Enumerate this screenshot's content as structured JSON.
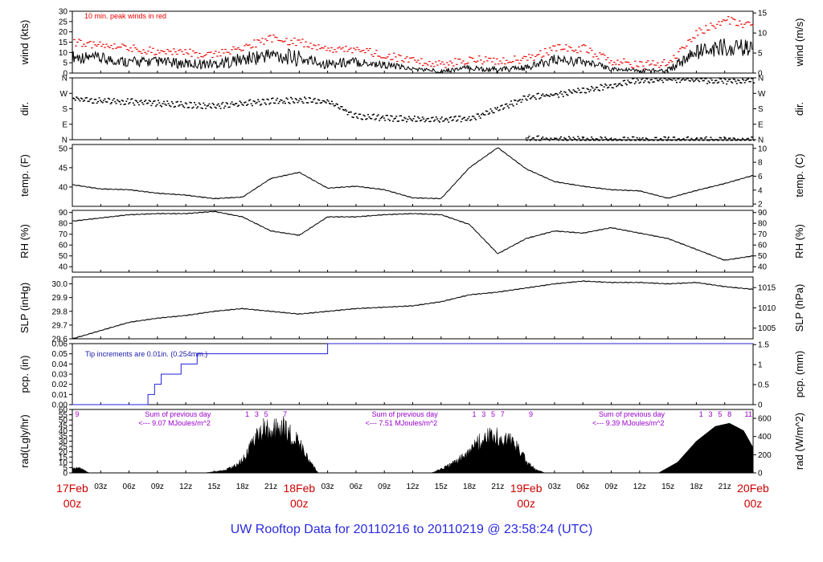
{
  "chart_data": {
    "type": "line",
    "title": "UW Rooftop Data for 20110216  to  20110219 @ 23:58:24  (UTC)",
    "x_range": [
      "2011-02-17T00:00Z",
      "2011-02-20T00:00Z"
    ],
    "x_ticks_minor": [
      "03z",
      "06z",
      "09z",
      "12z",
      "15z",
      "18z",
      "21z",
      "03z",
      "06z",
      "09z",
      "12z",
      "15z",
      "18z",
      "21z",
      "03z",
      "06z",
      "09z",
      "12z",
      "15z",
      "18z",
      "21z"
    ],
    "x_ticks_major": [
      {
        "date": "17Feb",
        "hour": "00z"
      },
      {
        "date": "18Feb",
        "hour": "00z"
      },
      {
        "date": "19Feb",
        "hour": "00z"
      },
      {
        "date": "20Feb",
        "hour": "00z"
      }
    ],
    "colors": {
      "axis": "#000000",
      "date_labels": "#cc0000",
      "peak": "#ee0000",
      "precip": "#2222dd",
      "precip_note": "#1a1aaa",
      "rad_text": "#9900cc",
      "title": "#2a2adf"
    },
    "panels": [
      {
        "id": "wind",
        "ylabel_left": "wind (kts)",
        "ylabel_right": "wind (m/s)",
        "ylim": [
          0,
          30
        ],
        "yticks_left": [
          "0",
          "5",
          "10",
          "15",
          "20",
          "25",
          "30"
        ],
        "yticks_right": [
          "0",
          "5",
          "10",
          "15"
        ],
        "note": "10 min. peak winds in red",
        "series": [
          {
            "kind": "band",
            "hours": [
              0,
              3,
              6,
              9,
              12,
              15,
              18,
              21,
              24,
              27,
              30,
              33,
              36,
              39,
              42,
              45,
              48,
              51,
              54,
              57,
              60,
              63,
              66,
              69,
              72
            ],
            "low": [
              5,
              4,
              3,
              3,
              2,
              2,
              3,
              5,
              3,
              2,
              3,
              2,
              1,
              0,
              1,
              0,
              1,
              4,
              3,
              1,
              0,
              0,
              6,
              8,
              8
            ],
            "high": [
              11,
              10,
              8,
              8,
              7,
              7,
              10,
              13,
              11,
              7,
              8,
              6,
              3,
              2,
              4,
              3,
              4,
              9,
              8,
              3,
              2,
              3,
              14,
              17,
              16
            ]
          },
          {
            "kind": "peak",
            "hours": [
              0,
              3,
              6,
              9,
              12,
              15,
              18,
              21,
              24,
              27,
              30,
              33,
              36,
              39,
              42,
              45,
              48,
              51,
              54,
              57,
              60,
              63,
              66,
              69,
              72
            ],
            "values": [
              15,
              14,
              12,
              11,
              10,
              9,
              13,
              17,
              15,
              11,
              12,
              9,
              6,
              4,
              7,
              6,
              7,
              12,
              12,
              6,
              4,
              5,
              20,
              26,
              23
            ]
          }
        ]
      },
      {
        "id": "dir",
        "ylabel_left": "dir.",
        "ylabel_right": "dir.",
        "ylim": [
          0,
          360
        ],
        "yticks_left": [
          "N",
          "E",
          "S",
          "W",
          "N"
        ],
        "yticks_right": [
          "N",
          "E",
          "S",
          "W",
          "N"
        ],
        "series": [
          {
            "kind": "scatter",
            "hours": [
              0,
              3,
              6,
              9,
              12,
              15,
              18,
              21,
              24,
              27,
              30,
              33,
              36,
              39,
              42,
              45,
              48,
              51,
              54,
              57,
              60,
              63,
              66,
              69,
              72
            ],
            "values": [
              245,
              230,
              225,
              215,
              205,
              200,
              215,
              228,
              235,
              225,
              140,
              130,
              125,
              120,
              125,
              180,
              250,
              265,
              290,
              320,
              350,
              355,
              350,
              345,
              350
            ]
          },
          {
            "kind": "scatter",
            "hours": [
              48,
              51,
              54,
              57,
              60,
              63,
              66,
              69,
              72
            ],
            "values": [
              10,
              5,
              4,
              3,
              2,
              2,
              2,
              3,
              2
            ]
          }
        ]
      },
      {
        "id": "temp",
        "ylabel_left": "temp. (F)",
        "ylabel_right": "temp. (C)",
        "ylim": [
          35,
          51
        ],
        "yticks_left": [
          "40",
          "45",
          "50"
        ],
        "yticks_right": [
          "2",
          "4",
          "6",
          "8",
          "10"
        ],
        "series": [
          {
            "kind": "line",
            "hours": [
              0,
              3,
              6,
              9,
              12,
              15,
              18,
              21,
              24,
              27,
              30,
              33,
              36,
              39,
              42,
              45,
              48,
              51,
              54,
              57,
              60,
              63,
              66,
              69,
              72
            ],
            "values": [
              40.6,
              39.5,
              39.3,
              38.4,
              37.9,
              37.0,
              37.4,
              42.2,
              43.8,
              39.7,
              40.2,
              39.3,
              37.2,
              37.0,
              45.0,
              50.2,
              44.7,
              41.4,
              40.2,
              39.3,
              39.0,
              37.1,
              39.1,
              40.9,
              43.0
            ]
          }
        ]
      },
      {
        "id": "rh",
        "ylabel_left": "RH (%)",
        "ylabel_right": "RH (%)",
        "ylim": [
          35,
          92
        ],
        "yticks_left": [
          "40",
          "50",
          "60",
          "70",
          "80",
          "90"
        ],
        "yticks_right": [
          "40",
          "50",
          "60",
          "70",
          "80",
          "90"
        ],
        "series": [
          {
            "kind": "line",
            "hours": [
              0,
              3,
              6,
              9,
              12,
              15,
              18,
              21,
              24,
              27,
              30,
              33,
              36,
              39,
              42,
              45,
              48,
              51,
              54,
              57,
              60,
              63,
              66,
              69,
              72
            ],
            "values": [
              82,
              85,
              88,
              89,
              89,
              91,
              86,
              73,
              69,
              86,
              86,
              88,
              89,
              88,
              79,
              52,
              66,
              73,
              71,
              76,
              71,
              66,
              56,
              46,
              50
            ]
          }
        ]
      },
      {
        "id": "slp",
        "ylabel_left": "SLP (inHg)",
        "ylabel_right": "SLP (hPa)",
        "ylim": [
          29.6,
          30.05
        ],
        "yticks_left": [
          "29.6",
          "29.7",
          "29.8",
          "29.9",
          "30.0"
        ],
        "yticks_right": [
          "1005",
          "1010",
          "1015"
        ],
        "series": [
          {
            "kind": "line",
            "hours": [
              0,
              3,
              6,
              9,
              12,
              15,
              18,
              21,
              24,
              27,
              30,
              33,
              36,
              39,
              42,
              45,
              48,
              51,
              54,
              57,
              60,
              63,
              66,
              69,
              72
            ],
            "values": [
              29.6,
              29.66,
              29.72,
              29.75,
              29.77,
              29.8,
              29.82,
              29.8,
              29.78,
              29.8,
              29.82,
              29.83,
              29.84,
              29.87,
              29.92,
              29.94,
              29.97,
              30.0,
              30.02,
              30.01,
              30.01,
              30.0,
              30.01,
              29.98,
              29.96
            ]
          }
        ]
      },
      {
        "id": "pcp",
        "ylabel_left": "pcp. (in)",
        "ylabel_right": "pcp. (mm)",
        "ylim": [
          0,
          0.06
        ],
        "yticks_left": [
          "0.00",
          "0.01",
          "0.02",
          "0.03",
          "0.04",
          "0.05",
          "0.06"
        ],
        "yticks_right": [
          "0",
          "0.5",
          "1",
          "1.5"
        ],
        "note": "Tip increments are 0.01in. (0.254mm.)",
        "series": [
          {
            "kind": "step",
            "hours": [
              0,
              8,
              8.7,
              9.4,
              11.5,
              13.2,
              27,
              72
            ],
            "values": [
              0,
              0.01,
              0.02,
              0.03,
              0.04,
              0.05,
              0.06,
              0.06
            ]
          }
        ]
      },
      {
        "id": "rad",
        "ylabel_left": "rad(Lgly/hr)",
        "ylabel_right": "rad (W/m^2)",
        "ylim": [
          0,
          60
        ],
        "yticks_left": [
          "0",
          "5",
          "10",
          "15",
          "20",
          "25",
          "30",
          "35",
          "40",
          "45",
          "50",
          "55",
          "60"
        ],
        "yticks_right": [
          "0",
          "200",
          "400",
          "600"
        ],
        "series": [
          {
            "kind": "area",
            "hours": [
              0,
              0.6,
              1.8,
              14,
              16,
              17.5,
              18.5,
              19.5,
              20.5,
              21.5,
              22.5,
              23.5,
              24.5,
              26
            ],
            "values": [
              5,
              7,
              0,
              0,
              3,
              10,
              24,
              45,
              56,
              52,
              55,
              44,
              25,
              0
            ]
          },
          {
            "kind": "area",
            "hours": [
              38,
              40,
              42,
              43,
              44,
              45,
              46,
              47,
              48,
              49,
              50
            ],
            "values": [
              0,
              10,
              24,
              38,
              44,
              45,
              42,
              34,
              14,
              4,
              0
            ]
          },
          {
            "kind": "area",
            "hours": [
              62,
              64,
              66,
              68,
              69.5,
              71,
              72
            ],
            "values": [
              0,
              10,
              30,
              44,
              47,
              40,
              24
            ]
          }
        ],
        "annotations": [
          {
            "text": "Sum of previous day",
            "x_hour": 7
          },
          {
            "text": "<--- 9.07 MJoules/m^2",
            "x_hour": 7
          },
          {
            "text": "Sum of previous day",
            "x_hour": 31
          },
          {
            "text": "<--- 7.51 MJoules/m^2",
            "x_hour": 31
          },
          {
            "text": "Sum of previous day",
            "x_hour": 55
          },
          {
            "text": "<--- 9.39 MJoules/m^2",
            "x_hour": 55
          }
        ],
        "hour_markers": [
          {
            "hour": 0.5,
            "label": "9"
          },
          {
            "hour": 18.5,
            "label": "1"
          },
          {
            "hour": 19.5,
            "label": "3"
          },
          {
            "hour": 20.5,
            "label": "5"
          },
          {
            "hour": 22.5,
            "label": "7"
          },
          {
            "hour": 42.5,
            "label": "1"
          },
          {
            "hour": 43.5,
            "label": "3"
          },
          {
            "hour": 44.5,
            "label": "5"
          },
          {
            "hour": 45.5,
            "label": "7"
          },
          {
            "hour": 48.5,
            "label": "9"
          },
          {
            "hour": 66.5,
            "label": "1"
          },
          {
            "hour": 67.5,
            "label": "3"
          },
          {
            "hour": 68.5,
            "label": "5"
          },
          {
            "hour": 69.5,
            "label": "8"
          },
          {
            "hour": 71.5,
            "label": "11"
          }
        ]
      }
    ]
  }
}
